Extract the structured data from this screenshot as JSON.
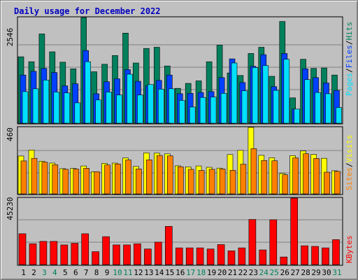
{
  "title": "Daily usage for December 2022",
  "colors": {
    "hits": "#00805c",
    "files": "#0040ff",
    "pages": "#00e0ff",
    "visits": "#ffff00",
    "sites": "#ff8000",
    "kbytes": "#ff0000",
    "weekday": "#000000",
    "weekend": "#00805c"
  },
  "chart_data": [
    {
      "type": "bar",
      "title": "Daily usage for December 2022",
      "ymax_label": "2546",
      "ylim": [
        0,
        2546
      ],
      "legend": [
        {
          "name": "Pages",
          "color": "#00e0ff"
        },
        {
          "name": "Files",
          "color": "#0040ff"
        },
        {
          "name": "Hits",
          "color": "#00805c"
        }
      ],
      "series": [
        {
          "name": "Hits",
          "values": [
            1600,
            1480,
            2150,
            1720,
            1470,
            1310,
            2546,
            1240,
            1420,
            1630,
            2170,
            1450,
            1800,
            1830,
            1380,
            840,
            960,
            1020,
            1480,
            1880,
            1210,
            1150,
            1680,
            1830,
            1130,
            2450,
            610,
            1540,
            1320,
            1330,
            1160
          ]
        },
        {
          "name": "Files",
          "values": [
            1160,
            1250,
            1320,
            1220,
            900,
            950,
            1750,
            710,
            1000,
            1070,
            1290,
            1010,
            900,
            1030,
            1160,
            710,
            720,
            740,
            760,
            1100,
            1550,
            980,
            1370,
            1650,
            880,
            1680,
            340,
            1310,
            1100,
            970,
            790
          ]
        },
        {
          "name": "Pages",
          "values": [
            760,
            830,
            1040,
            750,
            730,
            490,
            1480,
            560,
            750,
            680,
            1180,
            680,
            930,
            820,
            830,
            550,
            390,
            620,
            630,
            720,
            1450,
            780,
            1340,
            1390,
            790,
            1540,
            340,
            1050,
            740,
            710,
            380
          ]
        }
      ]
    },
    {
      "type": "bar",
      "ymax_label": "460",
      "ylim": [
        0,
        460
      ],
      "legend": [
        {
          "name": "Sites",
          "color": "#ff8000"
        },
        {
          "name": "Visits",
          "color": "#ffff00"
        }
      ],
      "series": [
        {
          "name": "Visits",
          "values": [
            262,
            303,
            226,
            213,
            175,
            176,
            193,
            153,
            211,
            213,
            249,
            190,
            284,
            282,
            277,
            194,
            187,
            193,
            184,
            178,
            272,
            301,
            460,
            267,
            250,
            141,
            265,
            297,
            273,
            246,
            160
          ]
        },
        {
          "name": "Sites",
          "values": [
            228,
            246,
            219,
            202,
            170,
            172,
            177,
            153,
            200,
            207,
            235,
            173,
            236,
            266,
            263,
            188,
            170,
            162,
            170,
            172,
            163,
            206,
            313,
            231,
            229,
            132,
            249,
            278,
            245,
            150,
            156
          ]
        }
      ]
    },
    {
      "type": "bar",
      "ymax_label": "45230",
      "ylim": [
        0,
        45230
      ],
      "legend": [
        {
          "name": "KBytes",
          "color": "#ff0000"
        }
      ],
      "series": [
        {
          "name": "KBytes",
          "values": [
            21000,
            14200,
            15800,
            15800,
            13400,
            14500,
            21000,
            8800,
            19000,
            13400,
            13400,
            14200,
            10600,
            15300,
            26000,
            11400,
            11400,
            11400,
            10600,
            13600,
            9400,
            11400,
            30700,
            10000,
            30500,
            5200,
            45230,
            12800,
            12400,
            11400,
            17000
          ]
        }
      ]
    }
  ],
  "days": [
    "1",
    "2",
    "3",
    "4",
    "5",
    "6",
    "7",
    "8",
    "9",
    "10",
    "11",
    "12",
    "13",
    "14",
    "15",
    "16",
    "17",
    "18",
    "19",
    "20",
    "21",
    "22",
    "23",
    "24",
    "25",
    "26",
    "27",
    "28",
    "29",
    "30",
    "31"
  ],
  "weekend_days": [
    3,
    4,
    10,
    11,
    17,
    18,
    24,
    25,
    31
  ]
}
